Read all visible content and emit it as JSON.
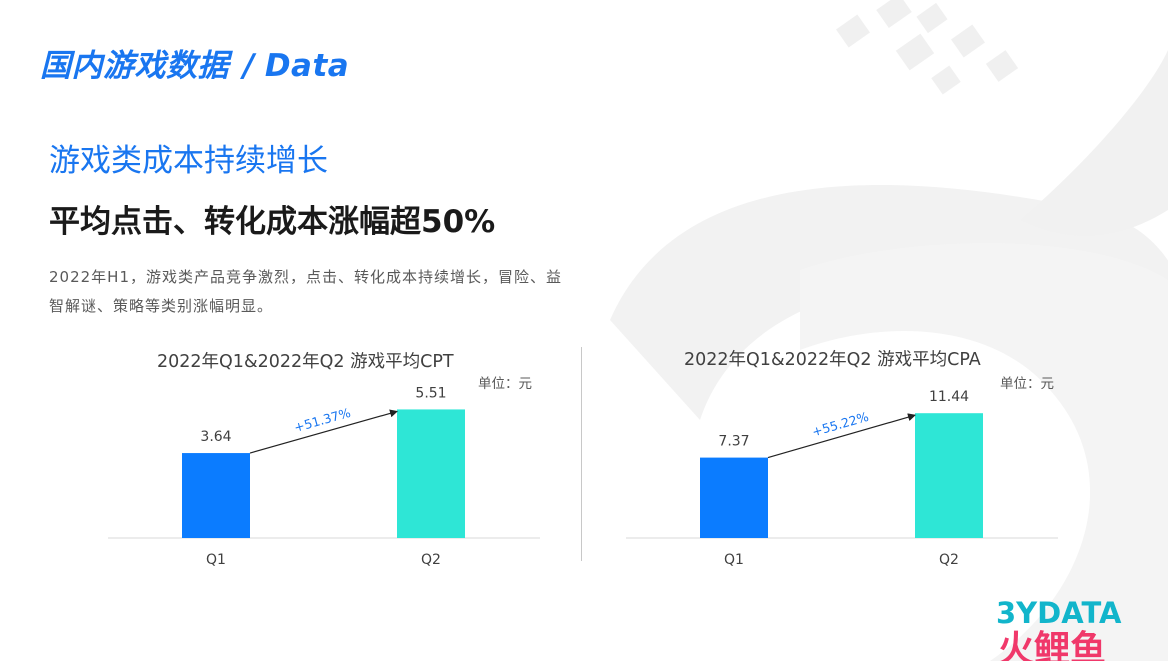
{
  "header": {
    "title_cn": "国内游戏数据",
    "separator": "/",
    "title_en": "Data"
  },
  "subtitle": "游戏类成本持续增长",
  "headline": "平均点击、转化成本涨幅超50%",
  "description": "2022年H1，游戏类产品竞争激烈，点击、转化成本持续增长，冒险、益智解谜、策略等类别涨幅明显。",
  "logo": {
    "top_text": "3YDATA",
    "bottom_text": "火鲤鱼"
  },
  "colors": {
    "accent": "#1976f0",
    "bar_q1": "#0b7cff",
    "bar_q2": "#2ee6d6",
    "growth_label": "#1976f0"
  },
  "chart_data": [
    {
      "type": "bar",
      "title": "2022年Q1&2022年Q2 游戏平均CPT",
      "unit": "单位：元",
      "categories": [
        "Q1",
        "Q2"
      ],
      "values": [
        3.64,
        5.51
      ],
      "value_labels": [
        "3.64",
        "5.51"
      ],
      "growth_label": "+51.37%",
      "ylim": [
        0,
        7.2
      ],
      "grid": false,
      "legend": "none"
    },
    {
      "type": "bar",
      "title": "2022年Q1&2022年Q2 游戏平均CPA",
      "unit": "单位：元",
      "categories": [
        "Q1",
        "Q2"
      ],
      "values": [
        7.37,
        11.44
      ],
      "value_labels": [
        "7.37",
        "11.44"
      ],
      "growth_label": "+55.22%",
      "ylim": [
        0,
        15.4
      ],
      "grid": false,
      "legend": "none"
    }
  ]
}
